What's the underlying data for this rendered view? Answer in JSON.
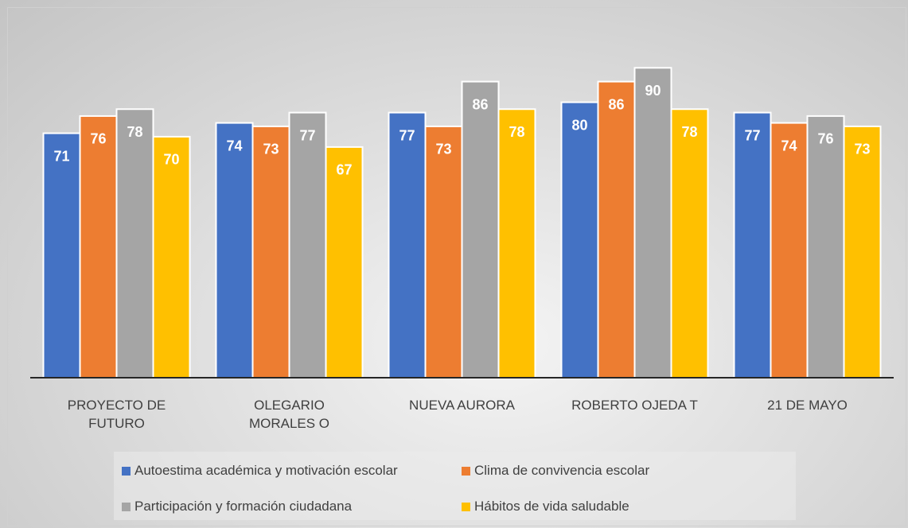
{
  "chart_data": {
    "type": "bar",
    "categories": [
      "PROYECTO DE FUTURO",
      "OLEGARIO MORALES O",
      "NUEVA AURORA",
      "ROBERTO OJEDA T",
      "21 DE MAYO"
    ],
    "series": [
      {
        "name": "Autoestima académica y motivación escolar",
        "color": "#4472c4",
        "values": [
          71,
          74,
          77,
          80,
          77
        ]
      },
      {
        "name": "Clima de convivencia escolar",
        "color": "#ed7d31",
        "values": [
          76,
          73,
          73,
          86,
          74
        ]
      },
      {
        "name": "Participación y formación ciudadana",
        "color": "#a5a5a5",
        "values": [
          78,
          77,
          86,
          90,
          76
        ]
      },
      {
        "name": "Hábitos de vida saludable",
        "color": "#ffc000",
        "values": [
          70,
          67,
          78,
          78,
          73
        ]
      }
    ],
    "ylim": [
      0,
      100
    ],
    "legend": "bottom"
  }
}
